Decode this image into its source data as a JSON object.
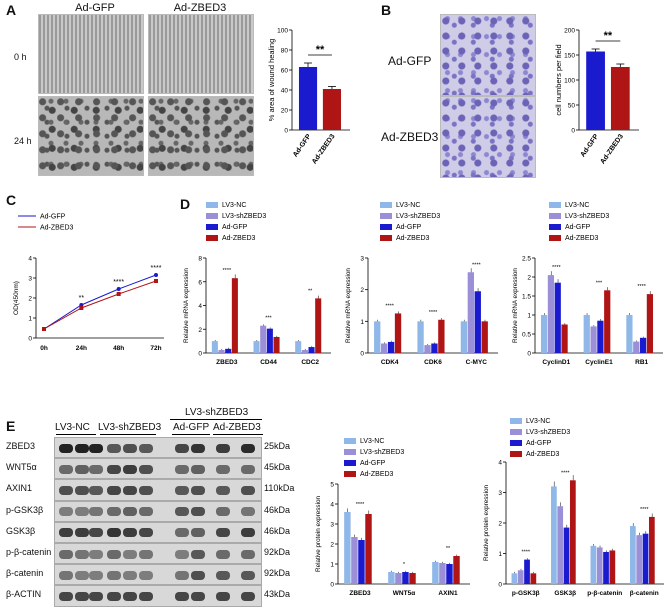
{
  "panels": {
    "A": "A",
    "B": "B",
    "C": "C",
    "D": "D",
    "E": "E"
  },
  "colors": {
    "ad_gfp": "#1a1acf",
    "ad_zbed3": "#b01515",
    "lv3_nc": "#8fb8e8",
    "lv3_shzbed3": "#9b8fd8",
    "blot_dark": "#222222"
  },
  "panel_a": {
    "col_labels": [
      "Ad-GFP",
      "Ad-ZBED3"
    ],
    "row_labels": [
      "0 h",
      "24 h"
    ]
  },
  "panel_b": {
    "row_labels": [
      "Ad-GFP",
      "Ad-ZBED3"
    ]
  },
  "panel_e_lanes": {
    "lv3_nc": "LV3-NC",
    "lv3_shzbed3": "LV3-shZBED3",
    "lv3_shzbed3_group": "LV3-shZBED3",
    "ad_gfp": "Ad-GFP",
    "ad_zbed3": "Ad-ZBED3"
  },
  "blot_rows": [
    {
      "name": "ZBED3",
      "kda": "25kDa"
    },
    {
      "name": "WNT5α",
      "kda": "45kDa"
    },
    {
      "name": "AXIN1",
      "kda": "110kDa"
    },
    {
      "name": "p-GSK3β",
      "kda": "46kDa"
    },
    {
      "name": "GSK3β",
      "kda": "46kDa"
    },
    {
      "name": "p-β-catenin",
      "kda": "92kDa"
    },
    {
      "name": "β-catenin",
      "kda": "92kDa"
    },
    {
      "name": "β-ACTIN",
      "kda": "43kDa"
    }
  ],
  "legend4": [
    "LV3-NC",
    "LV3-shZBED3",
    "Ad-GFP",
    "Ad-ZBED3"
  ],
  "chart_data": [
    {
      "id": "A_bar",
      "type": "bar",
      "categories": [
        "Ad-GFP",
        "Ad-ZBED3"
      ],
      "values": [
        63,
        41
      ],
      "errors": [
        4,
        2.5
      ],
      "ylabel": "% area of wound healing",
      "ylim": [
        0,
        100
      ],
      "yticks": [
        0,
        20,
        40,
        60,
        80,
        100
      ],
      "sig": "**"
    },
    {
      "id": "B_bar",
      "type": "bar",
      "categories": [
        "Ad-GFP",
        "Ad-ZBED3"
      ],
      "values": [
        157,
        126
      ],
      "errors": [
        5,
        6
      ],
      "ylabel": "cell numbers per field",
      "ylim": [
        0,
        200
      ],
      "yticks": [
        0,
        50,
        100,
        150,
        200
      ],
      "sig": "**"
    },
    {
      "id": "C_line",
      "type": "line",
      "categories": [
        "0h",
        "24h",
        "48h",
        "72h"
      ],
      "series": [
        {
          "name": "Ad-GFP",
          "values": [
            0.45,
            1.65,
            2.45,
            3.15
          ]
        },
        {
          "name": "Ad-ZBED3",
          "values": [
            0.45,
            1.5,
            2.2,
            2.85
          ]
        }
      ],
      "ylabel": "OD(450nm)",
      "ylim": [
        0,
        4
      ],
      "yticks": [
        0,
        1,
        2,
        3,
        4
      ],
      "sig": [
        "",
        "**",
        "****",
        "****"
      ]
    },
    {
      "id": "D1",
      "type": "bar",
      "categories": [
        "ZBED3",
        "CD44",
        "CDC2"
      ],
      "series": [
        {
          "name": "LV3-NC",
          "values": [
            1.0,
            1.0,
            1.0
          ]
        },
        {
          "name": "LV3-shZBED3",
          "values": [
            0.25,
            2.3,
            0.25
          ]
        },
        {
          "name": "Ad-GFP",
          "values": [
            0.35,
            2.05,
            0.5
          ]
        },
        {
          "name": "Ad-ZBED3",
          "values": [
            6.3,
            1.35,
            4.6
          ]
        }
      ],
      "ylabel": "Relative mRNA expression",
      "ylim": [
        0,
        8
      ],
      "yticks": [
        0,
        2,
        4,
        6,
        8
      ],
      "sig": [
        "****",
        "***",
        "***",
        "***",
        "*",
        "****",
        "**"
      ]
    },
    {
      "id": "D2",
      "type": "bar",
      "categories": [
        "CDK4",
        "CDK6",
        "C-MYC"
      ],
      "series": [
        {
          "name": "LV3-NC",
          "values": [
            1.0,
            1.0,
            1.0
          ]
        },
        {
          "name": "LV3-shZBED3",
          "values": [
            0.3,
            0.25,
            2.55
          ]
        },
        {
          "name": "Ad-GFP",
          "values": [
            0.35,
            0.3,
            1.95
          ]
        },
        {
          "name": "Ad-ZBED3",
          "values": [
            1.25,
            1.05,
            1.0
          ]
        }
      ],
      "ylabel": "Relative mRNA expression",
      "ylim": [
        0,
        3
      ],
      "yticks": [
        0,
        1,
        2,
        3
      ],
      "sig": [
        "****",
        "****",
        "****",
        "****",
        "****",
        "****"
      ]
    },
    {
      "id": "D3",
      "type": "bar",
      "categories": [
        "CyclinD1",
        "CyclinE1",
        "RB1"
      ],
      "series": [
        {
          "name": "LV3-NC",
          "values": [
            1.0,
            1.0,
            1.0
          ]
        },
        {
          "name": "LV3-shZBED3",
          "values": [
            2.05,
            0.7,
            0.3
          ]
        },
        {
          "name": "Ad-GFP",
          "values": [
            1.85,
            0.85,
            0.4
          ]
        },
        {
          "name": "Ad-ZBED3",
          "values": [
            0.75,
            1.65,
            1.55
          ]
        }
      ],
      "ylabel": "Relative mRNA expression",
      "ylim": [
        0,
        2.5
      ],
      "yticks": [
        0,
        0.5,
        1,
        1.5,
        2,
        2.5
      ],
      "sig": [
        "****",
        "****",
        "***",
        "****",
        "****",
        "****"
      ]
    },
    {
      "id": "E1",
      "type": "bar",
      "categories": [
        "ZBED3",
        "WNT5α",
        "AXIN1"
      ],
      "series": [
        {
          "name": "LV3-NC",
          "values": [
            3.6,
            0.6,
            1.1
          ]
        },
        {
          "name": "LV3-shZBED3",
          "values": [
            2.35,
            0.55,
            1.05
          ]
        },
        {
          "name": "Ad-GFP",
          "values": [
            2.2,
            0.6,
            1.0
          ]
        },
        {
          "name": "Ad-ZBED3",
          "values": [
            3.5,
            0.55,
            1.4
          ]
        }
      ],
      "ylabel": "Relative protein expression",
      "ylim": [
        0,
        5
      ],
      "yticks": [
        0,
        1,
        2,
        3,
        4,
        5
      ],
      "sig": [
        "****",
        "****",
        "*",
        "**"
      ]
    },
    {
      "id": "E2",
      "type": "bar",
      "categories": [
        "p-GSK3β",
        "GSK3β",
        "p-β-catenin",
        "β-catenin"
      ],
      "series": [
        {
          "name": "LV3-NC",
          "values": [
            0.35,
            3.2,
            1.25,
            1.9
          ]
        },
        {
          "name": "LV3-shZBED3",
          "values": [
            0.45,
            2.55,
            1.2,
            1.6
          ]
        },
        {
          "name": "Ad-GFP",
          "values": [
            0.8,
            1.85,
            1.05,
            1.65
          ]
        },
        {
          "name": "Ad-ZBED3",
          "values": [
            0.35,
            3.4,
            1.1,
            2.2
          ]
        }
      ],
      "ylabel": "Relative protein expression",
      "ylim": [
        0,
        4
      ],
      "yticks": [
        0,
        1,
        2,
        3,
        4
      ],
      "sig": [
        "****",
        "****",
        "****",
        "**",
        "****"
      ]
    }
  ]
}
